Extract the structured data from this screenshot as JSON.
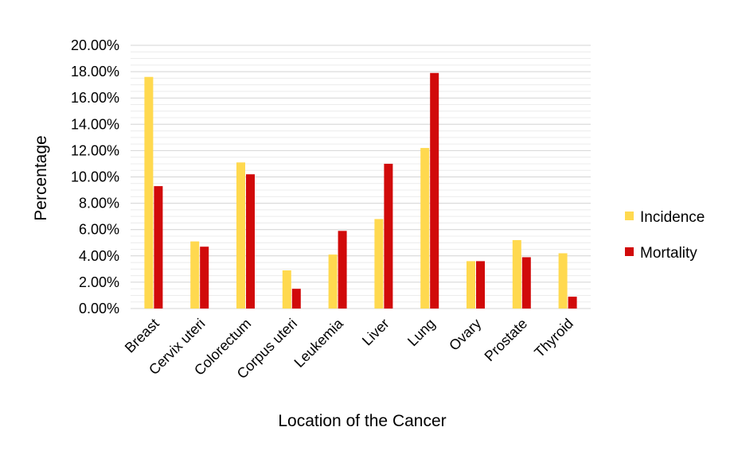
{
  "chart_data": {
    "type": "bar",
    "title": "",
    "xlabel": "Location of the Cancer",
    "ylabel": "Percentage",
    "ylim": [
      0,
      20
    ],
    "y_tick_step": 2,
    "y_tick_labels": [
      "0.00%",
      "2.00%",
      "4.00%",
      "6.00%",
      "8.00%",
      "10.00%",
      "12.00%",
      "14.00%",
      "16.00%",
      "18.00%",
      "20.00%"
    ],
    "grid": true,
    "legend_position": "right",
    "categories": [
      "Breast",
      "Cervix uteri",
      "Colorectum",
      "Corpus uteri",
      "Leukemia",
      "Liver",
      "Lung",
      "Ovary",
      "Prostate",
      "Thyroid"
    ],
    "series": [
      {
        "name": "Incidence",
        "color": "#ffd94f",
        "values": [
          17.6,
          5.1,
          11.1,
          2.9,
          4.1,
          6.8,
          12.2,
          3.6,
          5.2,
          4.2
        ]
      },
      {
        "name": "Mortality",
        "color": "#d10a0a",
        "values": [
          9.3,
          4.7,
          10.2,
          1.5,
          5.9,
          11.0,
          17.9,
          3.6,
          3.9,
          0.9
        ]
      }
    ]
  }
}
